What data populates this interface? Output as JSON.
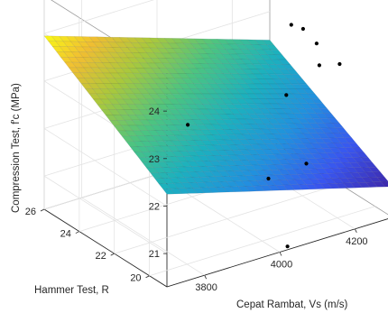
{
  "chart_data": {
    "type": "surface3d",
    "title": "",
    "xlabel": "Cepat Rambat, Vs (m/s)",
    "ylabel": "Hammer Test, R",
    "zlabel": "Compression Test, f'c (MPa)",
    "xlim": [
      3700,
      4300
    ],
    "ylim": [
      19,
      26
    ],
    "zlim": [
      20.3,
      24.8
    ],
    "x_ticks": [
      3800,
      4000,
      4200
    ],
    "y_ticks": [
      20,
      22,
      24,
      26
    ],
    "z_ticks": [
      21,
      22,
      23,
      24
    ],
    "grid": true,
    "colormap": "parula",
    "surface": {
      "x_range": [
        3700,
        4300
      ],
      "y_range": [
        19,
        26
      ],
      "corners": {
        "x3700_y19": 22.25,
        "x4300_y19": 20.95,
        "x3700_y26": 23.95,
        "x4300_y26": 22.4
      }
    },
    "points": [
      {
        "x": 3780,
        "y": 25.6,
        "z": 24.7
      },
      {
        "x": 3900,
        "y": 22.1,
        "z": 22.5
      },
      {
        "x": 4180,
        "y": 22.2,
        "z": 23.9
      },
      {
        "x": 4230,
        "y": 22.6,
        "z": 23.6
      },
      {
        "x": 4120,
        "y": 21.2,
        "z": 22.8
      },
      {
        "x": 4280,
        "y": 22.9,
        "z": 23.1
      },
      {
        "x": 4250,
        "y": 22.1,
        "z": 22.9
      },
      {
        "x": 4290,
        "y": 21.8,
        "z": 22.9
      },
      {
        "x": 4040,
        "y": 20.5,
        "z": 21.4
      },
      {
        "x": 4150,
        "y": 20.7,
        "z": 21.4
      },
      {
        "x": 4030,
        "y": 19.2,
        "z": 20.3
      }
    ]
  }
}
